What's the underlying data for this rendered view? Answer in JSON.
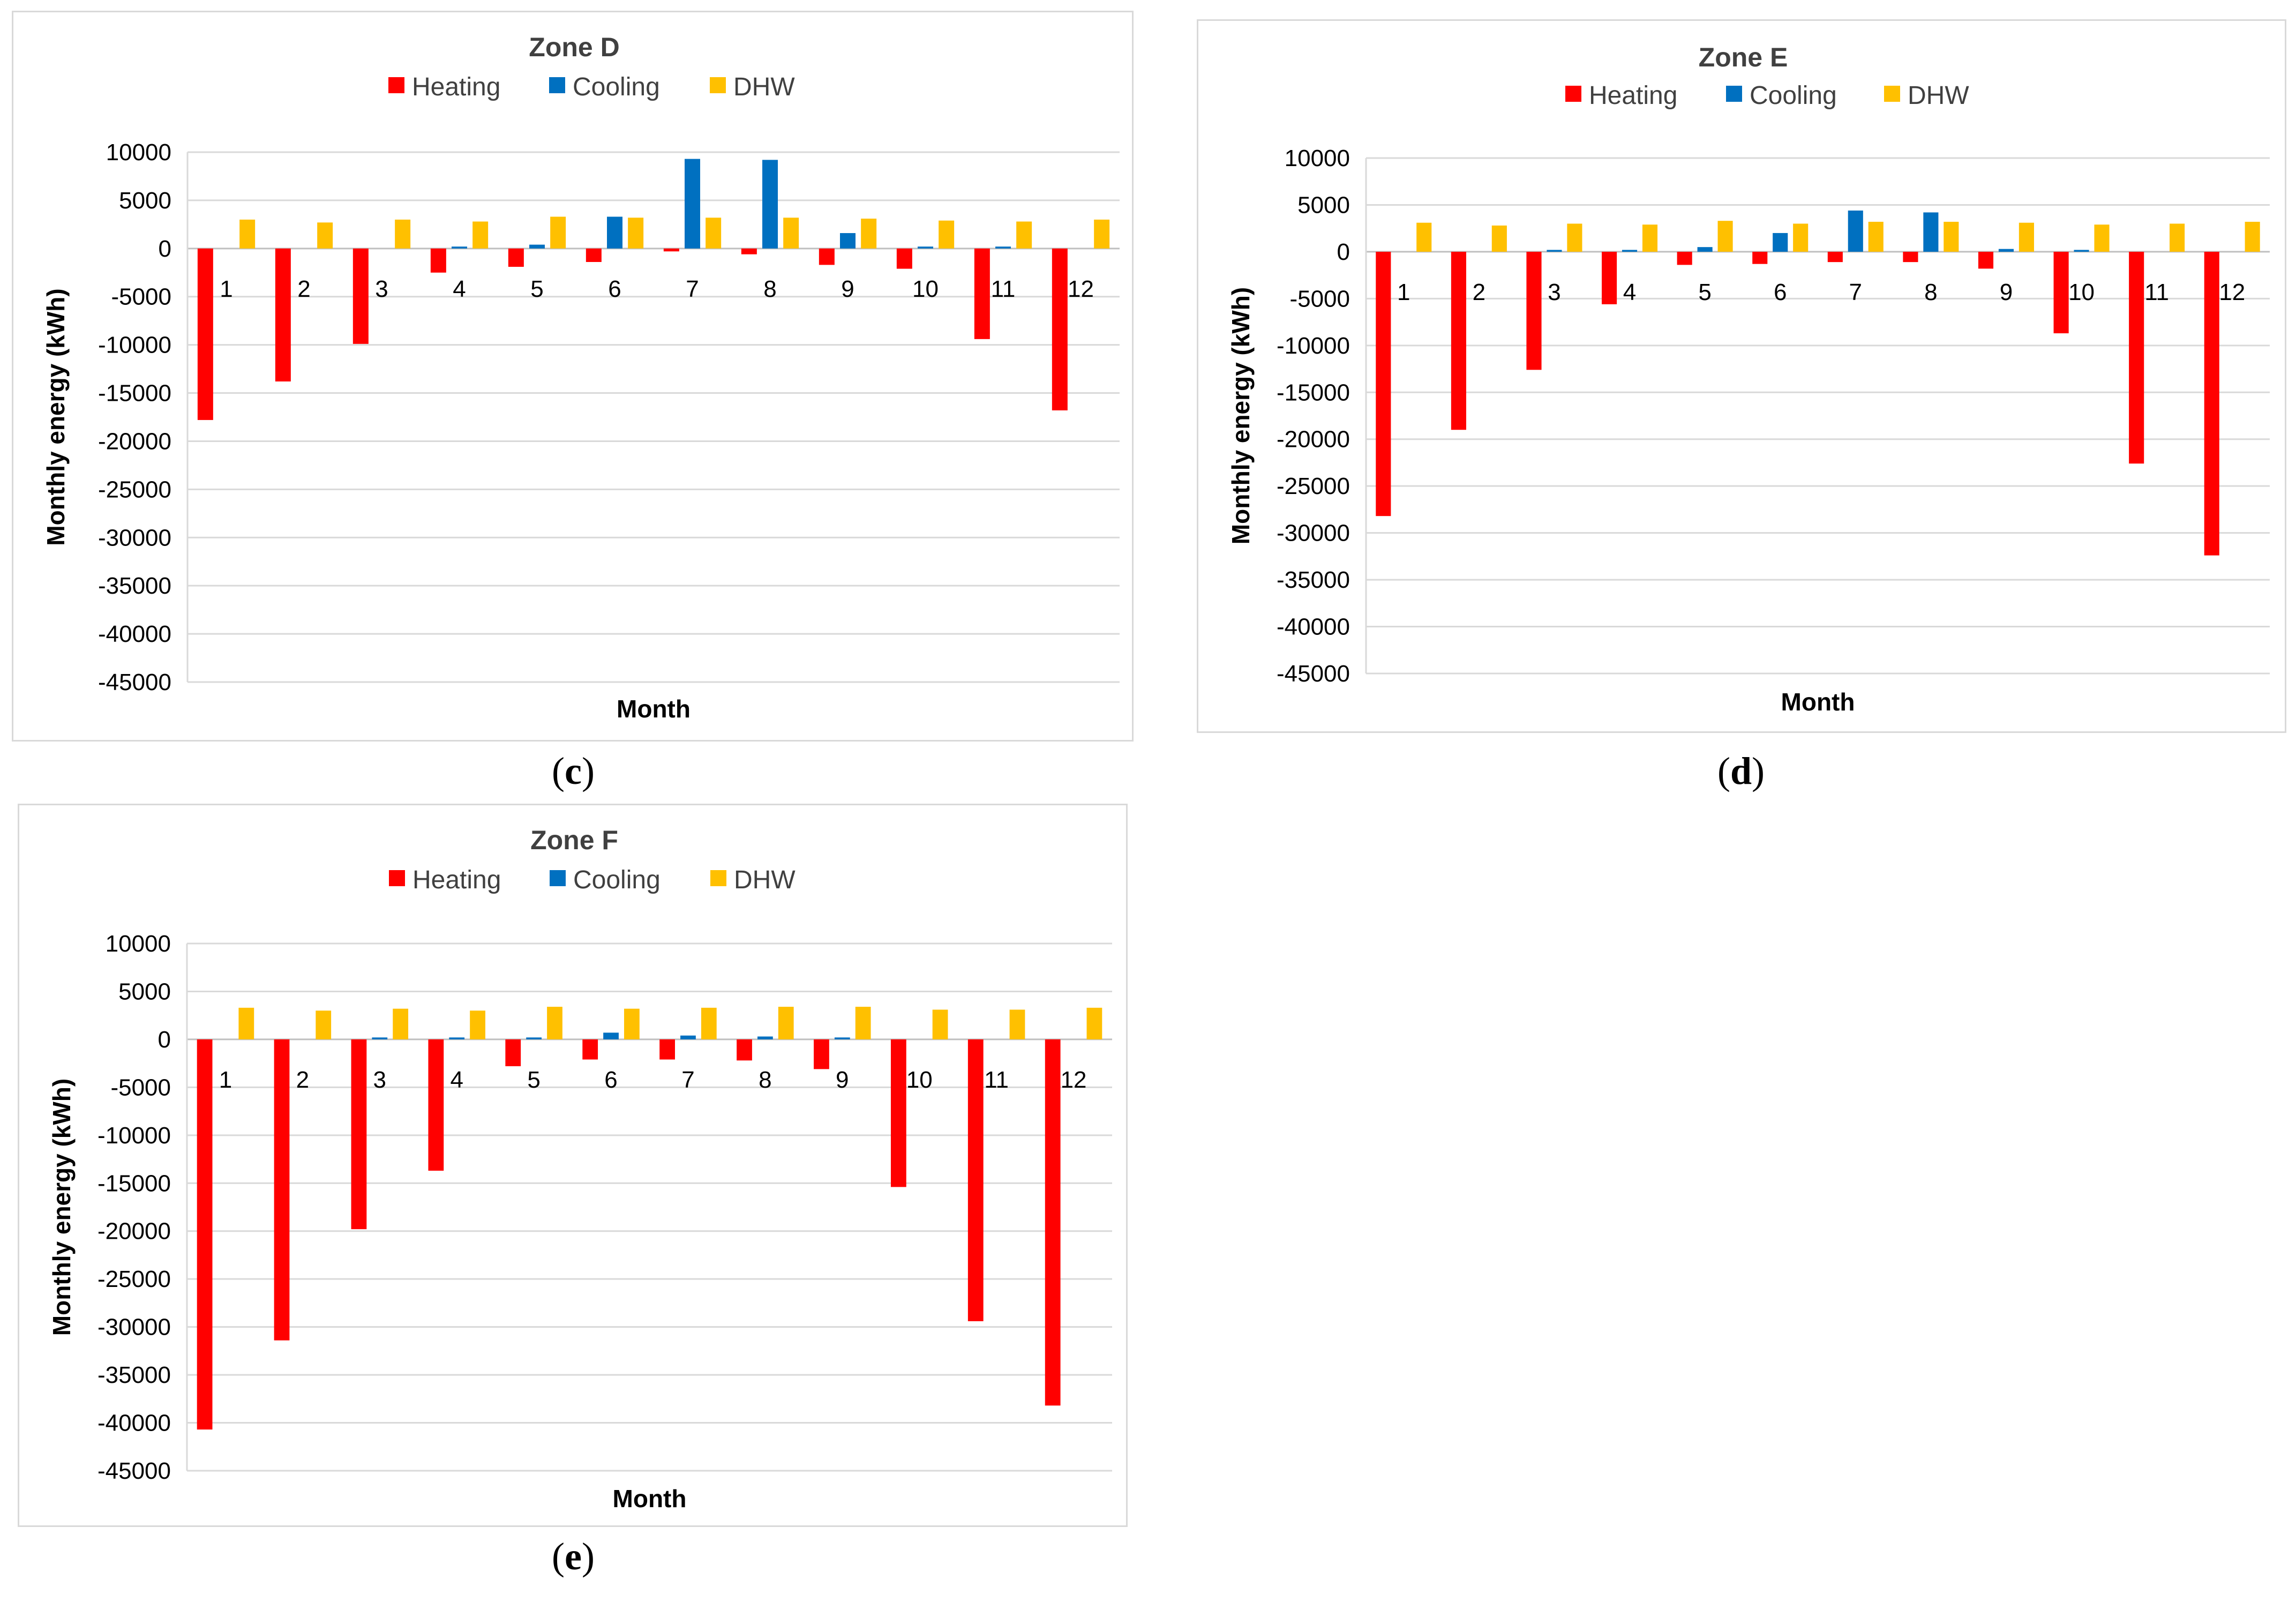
{
  "colors": {
    "heating": "#ff0000",
    "cooling": "#0070c0",
    "dhw": "#ffc000",
    "grid": "#d9d9d9",
    "axis": "#bfbfbf"
  },
  "captions": {
    "c": "c",
    "d": "d",
    "e": "e"
  },
  "chart_data": [
    {
      "type": "bar",
      "title": "Zone D",
      "xlabel": "Month",
      "ylabel": "Monthly energy  (kWh)",
      "categories": [
        "1",
        "2",
        "3",
        "4",
        "5",
        "6",
        "7",
        "8",
        "9",
        "10",
        "11",
        "12"
      ],
      "yticks": [
        "10000",
        "5000",
        "0",
        "-5000",
        "-10000",
        "-15000",
        "-20000",
        "-25000",
        "-30000",
        "-35000",
        "-40000",
        "-45000"
      ],
      "ylim": [
        -45000,
        10000
      ],
      "legend_position": "top",
      "grid": true,
      "series": [
        {
          "name": "Heating",
          "color": "#ff0000",
          "values": [
            -17800,
            -13800,
            -9900,
            -2500,
            -1900,
            -1400,
            -300,
            -600,
            -1700,
            -2100,
            -9400,
            -16800
          ]
        },
        {
          "name": "Cooling",
          "color": "#0070c0",
          "values": [
            0,
            0,
            0,
            200,
            400,
            3300,
            9300,
            9200,
            1600,
            200,
            200,
            0
          ]
        },
        {
          "name": "DHW",
          "color": "#ffc000",
          "values": [
            3000,
            2700,
            3000,
            2800,
            3300,
            3200,
            3200,
            3200,
            3100,
            2900,
            2800,
            3000
          ]
        }
      ]
    },
    {
      "type": "bar",
      "title": "Zone E",
      "xlabel": "Month",
      "ylabel": "Monthly energy  (kWh)",
      "categories": [
        "1",
        "2",
        "3",
        "4",
        "5",
        "6",
        "7",
        "8",
        "9",
        "10",
        "11",
        "12"
      ],
      "yticks": [
        "10000",
        "5000",
        "0",
        "-5000",
        "-10000",
        "-15000",
        "-20000",
        "-25000",
        "-30000",
        "-35000",
        "-40000",
        "-45000"
      ],
      "ylim": [
        -45000,
        10000
      ],
      "legend_position": "top",
      "grid": true,
      "series": [
        {
          "name": "Heating",
          "color": "#ff0000",
          "values": [
            -28200,
            -19000,
            -12600,
            -5600,
            -1400,
            -1300,
            -1100,
            -1100,
            -1800,
            -8700,
            -22600,
            -32400
          ]
        },
        {
          "name": "Cooling",
          "color": "#0070c0",
          "values": [
            0,
            0,
            200,
            200,
            500,
            2000,
            4400,
            4200,
            300,
            200,
            0,
            0
          ]
        },
        {
          "name": "DHW",
          "color": "#ffc000",
          "values": [
            3100,
            2800,
            3000,
            2900,
            3300,
            3000,
            3200,
            3200,
            3100,
            2900,
            3000,
            3200
          ]
        }
      ]
    },
    {
      "type": "bar",
      "title": "Zone F",
      "xlabel": "Month",
      "ylabel": "Monthly energy  (kWh)",
      "categories": [
        "1",
        "2",
        "3",
        "4",
        "5",
        "6",
        "7",
        "8",
        "9",
        "10",
        "11",
        "12"
      ],
      "yticks": [
        "10000",
        "5000",
        "0",
        "-5000",
        "-10000",
        "-15000",
        "-20000",
        "-25000",
        "-30000",
        "-35000",
        "-40000",
        "-45000"
      ],
      "ylim": [
        -45000,
        10000
      ],
      "legend_position": "top",
      "grid": true,
      "series": [
        {
          "name": "Heating",
          "color": "#ff0000",
          "values": [
            -40700,
            -31400,
            -19800,
            -13700,
            -2800,
            -2100,
            -2100,
            -2200,
            -3100,
            -15400,
            -29400,
            -38200
          ]
        },
        {
          "name": "Cooling",
          "color": "#0070c0",
          "values": [
            0,
            0,
            200,
            200,
            200,
            700,
            400,
            300,
            200,
            0,
            0,
            0
          ]
        },
        {
          "name": "DHW",
          "color": "#ffc000",
          "values": [
            3300,
            3000,
            3200,
            3000,
            3400,
            3200,
            3300,
            3400,
            3400,
            3100,
            3100,
            3300
          ]
        }
      ]
    }
  ]
}
